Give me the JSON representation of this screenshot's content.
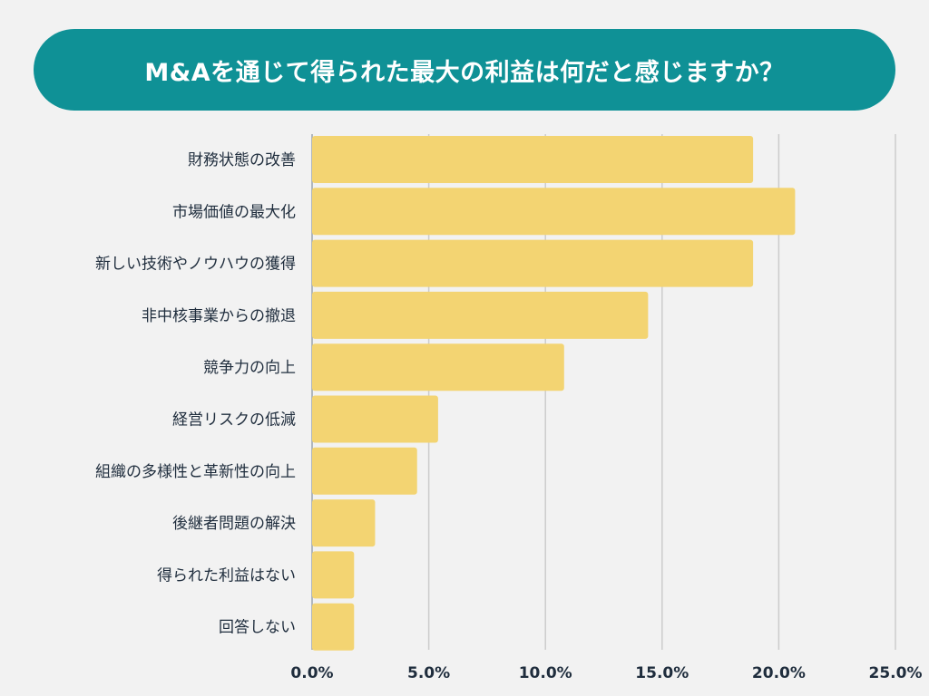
{
  "chart_data": {
    "type": "bar",
    "orientation": "horizontal",
    "title": "M&Aを通じて得られた最大の利益は何だと感じますか？",
    "categories": [
      "財務状態の改善",
      "市場価値の最大化",
      "新しい技術やノウハウの獲得",
      "非中核事業からの撤退",
      "競争力の向上",
      "経営リスクの低減",
      "組織の多様性と革新性の向上",
      "後継者問題の解決",
      "得られた利益はない",
      "回答しない"
    ],
    "values": [
      18.9,
      20.7,
      18.9,
      14.4,
      10.8,
      5.4,
      4.5,
      2.7,
      1.8,
      1.8
    ],
    "unit": "%",
    "xlim": [
      0,
      25
    ],
    "xticks": [
      "0.0%",
      "5.0%",
      "10.0%",
      "15.0%",
      "20.0%",
      "25.0%"
    ],
    "grid": true,
    "colors": {
      "bar": "#f3d472",
      "title_bg": "#0f9196",
      "grid": "#cccccc"
    }
  }
}
